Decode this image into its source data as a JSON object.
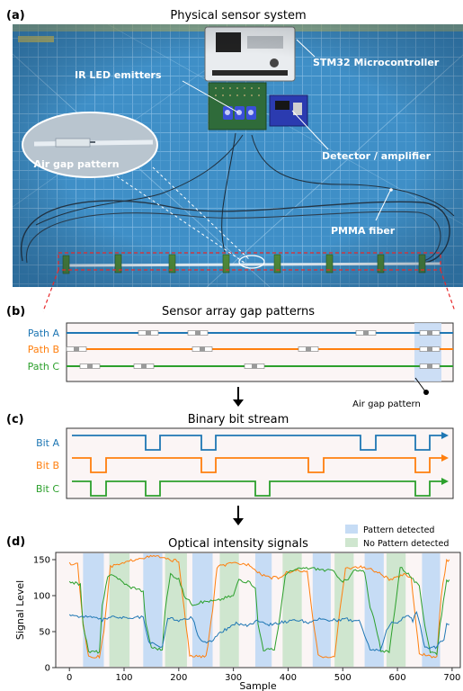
{
  "panels": {
    "a": {
      "letter": "(a)",
      "title": "Physical sensor system",
      "labels": {
        "mcu": "STM32 Microcontroller",
        "led": "IR LED emitters",
        "detector": "Detector / amplifier",
        "air_gap": "Air gap pattern",
        "fiber": "PMMA fiber"
      }
    },
    "b": {
      "letter": "(b)",
      "title": "Sensor array gap patterns",
      "paths": [
        {
          "label": "Path A",
          "color": "#1f77b4",
          "gaps": [
            165,
            220,
            407,
            478
          ]
        },
        {
          "label": "Path B",
          "color": "#ff7f0e",
          "gaps": [
            85,
            225,
            343,
            478
          ]
        },
        {
          "label": "Path C",
          "color": "#2ca02c",
          "gaps": [
            100,
            160,
            283,
            478
          ]
        }
      ],
      "callout": "Air gap pattern"
    },
    "c": {
      "letter": "(c)",
      "title": "Binary bit stream",
      "bits": [
        {
          "label": "Bit A",
          "color": "#1f77b4",
          "lows": [
            [
              162,
              178
            ],
            [
              224,
              240
            ],
            [
              401,
              418
            ],
            [
              462,
              478
            ]
          ]
        },
        {
          "label": "Bit B",
          "color": "#ff7f0e",
          "lows": [
            [
              101,
              118
            ],
            [
              224,
              240
            ],
            [
              343,
              360
            ],
            [
              462,
              478
            ]
          ]
        },
        {
          "label": "Bit C",
          "color": "#2ca02c",
          "lows": [
            [
              101,
              118
            ],
            [
              162,
              178
            ],
            [
              284,
              300
            ],
            [
              462,
              478
            ]
          ]
        }
      ]
    },
    "d": {
      "letter": "(d)",
      "title": "Optical intensity signals",
      "legend": [
        {
          "label": "Pattern detected",
          "color": "#c6dcf5"
        },
        {
          "label": "No Pattern detected",
          "color": "#cfe6cf"
        }
      ]
    }
  },
  "chart_data": {
    "type": "line",
    "xlabel": "Sample",
    "ylabel": "Signal Level",
    "xlim": [
      -25,
      715
    ],
    "ylim": [
      0,
      160
    ],
    "xticks": [
      0,
      100,
      200,
      300,
      400,
      500,
      600,
      700
    ],
    "yticks": [
      0,
      50,
      100,
      150
    ],
    "pattern_bands": [
      [
        25,
        63
      ],
      [
        135,
        170
      ],
      [
        225,
        262
      ],
      [
        340,
        370
      ],
      [
        445,
        478
      ],
      [
        540,
        575
      ],
      [
        645,
        678
      ]
    ],
    "no_pattern_bands": [
      [
        73,
        110
      ],
      [
        175,
        215
      ],
      [
        275,
        310
      ],
      [
        390,
        425
      ],
      [
        485,
        520
      ],
      [
        580,
        615
      ]
    ],
    "series": [
      {
        "color": "#ff7f0e",
        "points": [
          [
            0,
            145
          ],
          [
            15,
            143
          ],
          [
            25,
            60
          ],
          [
            35,
            16
          ],
          [
            55,
            15
          ],
          [
            63,
            50
          ],
          [
            75,
            140
          ],
          [
            100,
            145
          ],
          [
            125,
            152
          ],
          [
            160,
            155
          ],
          [
            180,
            150
          ],
          [
            200,
            148
          ],
          [
            210,
            80
          ],
          [
            220,
            16
          ],
          [
            250,
            15
          ],
          [
            262,
            80
          ],
          [
            270,
            140
          ],
          [
            300,
            145
          ],
          [
            330,
            143
          ],
          [
            350,
            130
          ],
          [
            370,
            125
          ],
          [
            385,
            125
          ],
          [
            400,
            133
          ],
          [
            420,
            135
          ],
          [
            435,
            132
          ],
          [
            445,
            70
          ],
          [
            455,
            16
          ],
          [
            485,
            15
          ],
          [
            495,
            80
          ],
          [
            505,
            138
          ],
          [
            530,
            140
          ],
          [
            545,
            138
          ],
          [
            555,
            135
          ],
          [
            570,
            130
          ],
          [
            585,
            122
          ],
          [
            600,
            125
          ],
          [
            615,
            130
          ],
          [
            625,
            125
          ],
          [
            640,
            20
          ],
          [
            660,
            15
          ],
          [
            672,
            15
          ],
          [
            680,
            100
          ],
          [
            690,
            148
          ],
          [
            695,
            150
          ]
        ]
      },
      {
        "color": "#2ca02c",
        "points": [
          [
            0,
            120
          ],
          [
            20,
            115
          ],
          [
            25,
            60
          ],
          [
            35,
            22
          ],
          [
            55,
            22
          ],
          [
            60,
            85
          ],
          [
            70,
            125
          ],
          [
            80,
            130
          ],
          [
            95,
            120
          ],
          [
            110,
            112
          ],
          [
            125,
            110
          ],
          [
            135,
            105
          ],
          [
            140,
            60
          ],
          [
            150,
            28
          ],
          [
            170,
            25
          ],
          [
            175,
            80
          ],
          [
            185,
            130
          ],
          [
            200,
            123
          ],
          [
            210,
            100
          ],
          [
            225,
            88
          ],
          [
            250,
            92
          ],
          [
            270,
            93
          ],
          [
            285,
            97
          ],
          [
            300,
            100
          ],
          [
            310,
            123
          ],
          [
            320,
            120
          ],
          [
            330,
            118
          ],
          [
            340,
            112
          ],
          [
            345,
            60
          ],
          [
            355,
            25
          ],
          [
            375,
            25
          ],
          [
            385,
            70
          ],
          [
            395,
            130
          ],
          [
            410,
            135
          ],
          [
            425,
            138
          ],
          [
            445,
            138
          ],
          [
            470,
            135
          ],
          [
            480,
            135
          ],
          [
            490,
            128
          ],
          [
            500,
            120
          ],
          [
            510,
            122
          ],
          [
            520,
            135
          ],
          [
            540,
            133
          ],
          [
            550,
            85
          ],
          [
            560,
            60
          ],
          [
            570,
            22
          ],
          [
            585,
            22
          ],
          [
            595,
            80
          ],
          [
            605,
            140
          ],
          [
            620,
            130
          ],
          [
            640,
            112
          ],
          [
            650,
            60
          ],
          [
            660,
            22
          ],
          [
            672,
            20
          ],
          [
            678,
            60
          ],
          [
            690,
            120
          ],
          [
            695,
            122
          ]
        ]
      },
      {
        "color": "#1f77b4",
        "points": [
          [
            0,
            74
          ],
          [
            20,
            70
          ],
          [
            30,
            72
          ],
          [
            50,
            68
          ],
          [
            60,
            66
          ],
          [
            75,
            70
          ],
          [
            90,
            70
          ],
          [
            110,
            68
          ],
          [
            125,
            70
          ],
          [
            135,
            70
          ],
          [
            145,
            35
          ],
          [
            170,
            28
          ],
          [
            180,
            70
          ],
          [
            200,
            65
          ],
          [
            225,
            70
          ],
          [
            235,
            45
          ],
          [
            245,
            35
          ],
          [
            260,
            37
          ],
          [
            270,
            45
          ],
          [
            290,
            55
          ],
          [
            305,
            62
          ],
          [
            325,
            58
          ],
          [
            345,
            66
          ],
          [
            365,
            60
          ],
          [
            380,
            62
          ],
          [
            400,
            64
          ],
          [
            420,
            66
          ],
          [
            440,
            62
          ],
          [
            460,
            68
          ],
          [
            475,
            66
          ],
          [
            490,
            66
          ],
          [
            505,
            68
          ],
          [
            520,
            65
          ],
          [
            530,
            66
          ],
          [
            540,
            45
          ],
          [
            550,
            25
          ],
          [
            570,
            25
          ],
          [
            580,
            52
          ],
          [
            590,
            62
          ],
          [
            600,
            62
          ],
          [
            610,
            70
          ],
          [
            620,
            72
          ],
          [
            628,
            65
          ],
          [
            635,
            78
          ],
          [
            642,
            58
          ],
          [
            650,
            28
          ],
          [
            670,
            28
          ],
          [
            685,
            40
          ],
          [
            690,
            62
          ],
          [
            695,
            60
          ]
        ]
      }
    ]
  }
}
